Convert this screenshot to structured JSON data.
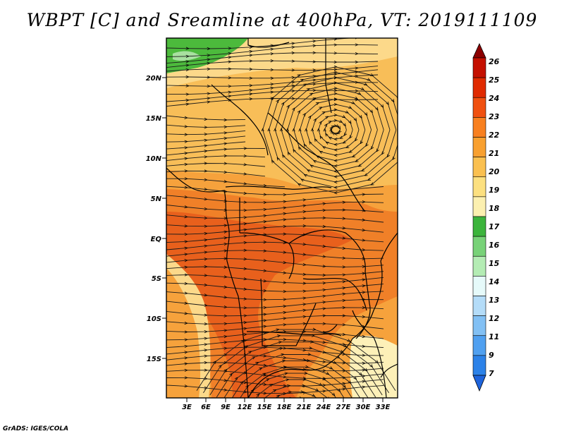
{
  "title": "WBPT [C] and Sreamline at 400hPa, VT: 2019111109",
  "credit": "GrADS: IGES/COLA",
  "map": {
    "lat_labels": [
      "20N",
      "15N",
      "10N",
      "5N",
      "EQ",
      "5S",
      "10S",
      "15S"
    ],
    "lon_labels": [
      "3E",
      "6E",
      "9E",
      "12E",
      "15E",
      "18E",
      "21E",
      "24E",
      "27E",
      "30E",
      "33E"
    ],
    "vortex_center": {
      "lon": 26.5,
      "lat": 13.5
    }
  },
  "colorbar": {
    "levels": [
      "26",
      "25",
      "24",
      "23",
      "22",
      "21",
      "20",
      "19",
      "18",
      "17",
      "16",
      "15",
      "14",
      "13",
      "12",
      "11",
      "9",
      "7"
    ],
    "colors": [
      "#a50000",
      "#c41000",
      "#e02a00",
      "#f05010",
      "#f88020",
      "#f8a030",
      "#fac050",
      "#fce080",
      "#fcf0b0",
      "#3cb43c",
      "#78d278",
      "#b4ecb4",
      "#e6fafa",
      "#b4dcf8",
      "#82c0f4",
      "#50a0f0",
      "#2c82e8",
      "#1464d2"
    ],
    "top_arrow_color": "#8c0000",
    "bottom_arrow_color": "#1e64dc"
  },
  "fill_colors": {
    "band_19_20": "#fcd98a",
    "band_20_21": "#f8be58",
    "band_21_22": "#f6a23c",
    "band_22_23": "#f08028",
    "band_23_24": "#e8601c",
    "green": "#4cba3c",
    "light_green": "#a8e0a0",
    "pale": "#fdf0b8"
  }
}
